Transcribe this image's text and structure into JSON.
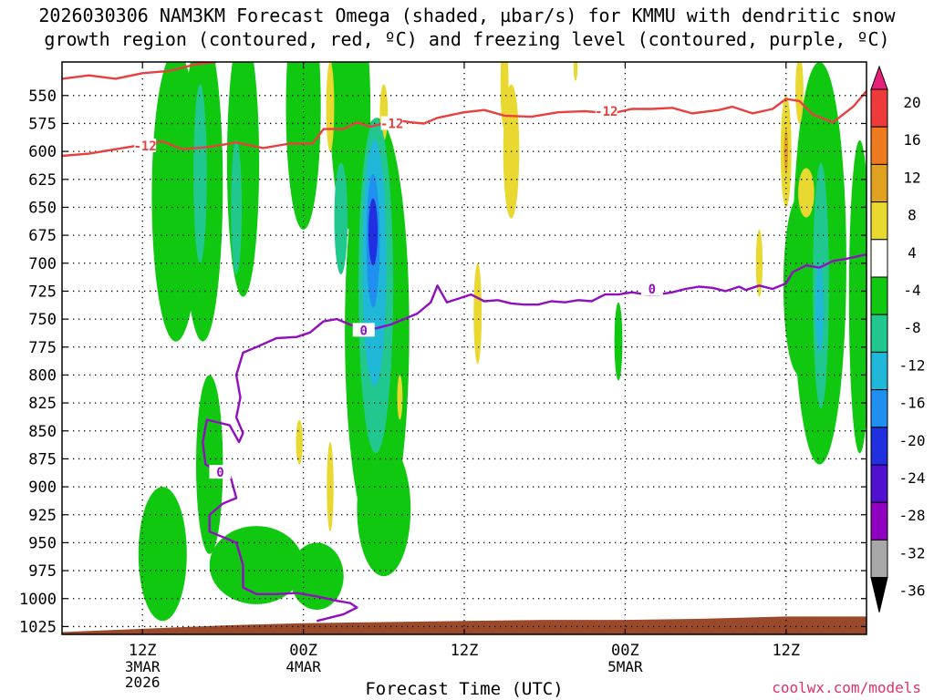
{
  "title": {
    "line1": "2026030306 NAM3KM Forecast Omega (shaded, µbar/s) for KMMU with dendritic snow",
    "line2": "growth region (contoured, red, ºC) and freezing level (contoured, purple, ºC)"
  },
  "credit": "coolwx.com/models",
  "colors": {
    "dgz_line": "#e84040",
    "freezing_line": "#9010c0",
    "ground": "#9a4a2a",
    "frame": "#000000",
    "grid": "#000000"
  },
  "chart_data": {
    "type": "heatmap",
    "xlabel": "Forecast Time (UTC)",
    "ylabel": "",
    "y_inverted": true,
    "yticks": [
      550,
      575,
      600,
      625,
      650,
      675,
      700,
      725,
      750,
      775,
      800,
      825,
      850,
      875,
      900,
      925,
      950,
      975,
      1000,
      1025
    ],
    "xticks": [
      {
        "hour": 12,
        "label": "12Z",
        "sub1": "3MAR",
        "sub2": "2026"
      },
      {
        "hour": 24,
        "label": "00Z",
        "sub1": "4MAR",
        "sub2": ""
      },
      {
        "hour": 36,
        "label": "12Z",
        "sub1": "",
        "sub2": ""
      },
      {
        "hour": 48,
        "label": "00Z",
        "sub1": "5MAR",
        "sub2": ""
      },
      {
        "hour": 60,
        "label": "12Z",
        "sub1": "",
        "sub2": ""
      }
    ],
    "x_range_hours": [
      6,
      66
    ],
    "y_range_hpa": [
      520,
      1032
    ],
    "colorbar": {
      "labels": [
        "20",
        "16",
        "12",
        "8",
        "4",
        "-4",
        "-8",
        "-12",
        "-16",
        "-20",
        "-24",
        "-28",
        "-32",
        "-36"
      ],
      "bins": [
        {
          "from": 20,
          "to": 24,
          "color": "#e8207a"
        },
        {
          "from": 16,
          "to": 20,
          "color": "#ee3a3a"
        },
        {
          "from": 12,
          "to": 16,
          "color": "#ee7a20"
        },
        {
          "from": 8,
          "to": 12,
          "color": "#e0a020"
        },
        {
          "from": 4,
          "to": 8,
          "color": "#e8d830"
        },
        {
          "from": -4,
          "to": 4,
          "color": "#ffffff"
        },
        {
          "from": -8,
          "to": -4,
          "color": "#10c810"
        },
        {
          "from": -12,
          "to": -8,
          "color": "#20c890"
        },
        {
          "from": -16,
          "to": -12,
          "color": "#20b8d8"
        },
        {
          "from": -20,
          "to": -16,
          "color": "#2090f0"
        },
        {
          "from": -24,
          "to": -20,
          "color": "#2030e0"
        },
        {
          "from": -28,
          "to": -24,
          "color": "#5010d0"
        },
        {
          "from": -32,
          "to": -28,
          "color": "#9000c0"
        },
        {
          "from": -36,
          "to": -32,
          "color": "#a8a8a8"
        },
        {
          "from": -40,
          "to": -36,
          "color": "#000000"
        }
      ]
    },
    "omega_regions": [
      {
        "level": -6,
        "center": [
          14.5,
          640
        ],
        "radius": [
          1.8,
          130
        ]
      },
      {
        "level": -6,
        "center": [
          16.5,
          630
        ],
        "radius": [
          1.5,
          140
        ]
      },
      {
        "level": -10,
        "center": [
          16.3,
          620
        ],
        "radius": [
          0.5,
          80
        ]
      },
      {
        "level": -6,
        "center": [
          19.5,
          610
        ],
        "radius": [
          1.2,
          120
        ]
      },
      {
        "level": -10,
        "center": [
          19.0,
          650
        ],
        "radius": [
          0.4,
          60
        ]
      },
      {
        "level": -6,
        "center": [
          13.5,
          960
        ],
        "radius": [
          1.8,
          60
        ]
      },
      {
        "level": -6,
        "center": [
          17.0,
          880
        ],
        "radius": [
          1.0,
          80
        ]
      },
      {
        "level": -6,
        "center": [
          20.5,
          970
        ],
        "radius": [
          3.5,
          35
        ]
      },
      {
        "level": -6,
        "center": [
          25.0,
          980
        ],
        "radius": [
          2.0,
          30
        ]
      },
      {
        "level": -6,
        "center": [
          24.0,
          560
        ],
        "radius": [
          1.3,
          110
        ]
      },
      {
        "level": -6,
        "center": [
          27.5,
          560
        ],
        "radius": [
          1.5,
          110
        ]
      },
      {
        "level": -6,
        "center": [
          29.5,
          760
        ],
        "radius": [
          2.4,
          190
        ]
      },
      {
        "level": -6,
        "center": [
          30.0,
          920
        ],
        "radius": [
          2.0,
          60
        ]
      },
      {
        "level": -10,
        "center": [
          29.4,
          720
        ],
        "radius": [
          1.3,
          150
        ]
      },
      {
        "level": -10,
        "center": [
          26.8,
          660
        ],
        "radius": [
          0.5,
          50
        ]
      },
      {
        "level": -14,
        "center": [
          29.3,
          700
        ],
        "radius": [
          0.9,
          110
        ]
      },
      {
        "level": -18,
        "center": [
          29.2,
          680
        ],
        "radius": [
          0.5,
          60
        ]
      },
      {
        "level": -22,
        "center": [
          29.2,
          672
        ],
        "radius": [
          0.35,
          30
        ]
      },
      {
        "level": -6,
        "center": [
          47.5,
          770
        ],
        "radius": [
          0.3,
          35
        ]
      },
      {
        "level": -6,
        "center": [
          62.5,
          700
        ],
        "radius": [
          2.0,
          180
        ]
      },
      {
        "level": -6,
        "center": [
          61.0,
          720
        ],
        "radius": [
          1.2,
          80
        ]
      },
      {
        "level": -6,
        "center": [
          65.5,
          730
        ],
        "radius": [
          0.8,
          140
        ]
      },
      {
        "level": -10,
        "center": [
          62.6,
          720
        ],
        "radius": [
          0.6,
          110
        ]
      },
      {
        "level": -14,
        "center": [
          62.5,
          740
        ],
        "radius": [
          0.3,
          40
        ]
      },
      {
        "level": 6,
        "center": [
          39.0,
          540
        ],
        "radius": [
          0.3,
          40
        ]
      },
      {
        "level": 6,
        "center": [
          39.5,
          600
        ],
        "radius": [
          0.6,
          60
        ]
      },
      {
        "level": 6,
        "center": [
          26.0,
          560
        ],
        "radius": [
          0.3,
          40
        ]
      },
      {
        "level": 6,
        "center": [
          26.0,
          900
        ],
        "radius": [
          0.25,
          40
        ]
      },
      {
        "level": 6,
        "center": [
          23.7,
          860
        ],
        "radius": [
          0.25,
          20
        ]
      },
      {
        "level": 6,
        "center": [
          30.0,
          565
        ],
        "radius": [
          0.3,
          25
        ]
      },
      {
        "level": 6,
        "center": [
          37.0,
          745
        ],
        "radius": [
          0.3,
          45
        ]
      },
      {
        "level": 6,
        "center": [
          31.2,
          820
        ],
        "radius": [
          0.2,
          20
        ]
      },
      {
        "level": 6,
        "center": [
          58.0,
          700
        ],
        "radius": [
          0.25,
          30
        ]
      },
      {
        "level": 6,
        "center": [
          60.0,
          600
        ],
        "radius": [
          0.4,
          50
        ]
      },
      {
        "level": 10,
        "center": [
          60.0,
          600
        ],
        "radius": [
          0.15,
          20
        ]
      },
      {
        "level": 6,
        "center": [
          61.5,
          637
        ],
        "radius": [
          0.6,
          22
        ]
      },
      {
        "level": 6,
        "center": [
          61.0,
          545
        ],
        "radius": [
          0.3,
          30
        ]
      },
      {
        "level": 6,
        "center": [
          44.3,
          525
        ],
        "radius": [
          0.15,
          12
        ]
      }
    ],
    "dgz_minus12_line": {
      "label": "-12",
      "points": [
        [
          6,
          604
        ],
        [
          8,
          602
        ],
        [
          10,
          598
        ],
        [
          12,
          594
        ],
        [
          13.5,
          591
        ],
        [
          15,
          598
        ],
        [
          17,
          596
        ],
        [
          19,
          592
        ],
        [
          21,
          597
        ],
        [
          23,
          593
        ],
        [
          24.7,
          593
        ],
        [
          25.5,
          580
        ],
        [
          27,
          580
        ],
        [
          28,
          574
        ],
        [
          29,
          578
        ],
        [
          31,
          572
        ],
        [
          32,
          574
        ],
        [
          33,
          575
        ],
        [
          34,
          570
        ],
        [
          36,
          565
        ],
        [
          37.5,
          563
        ],
        [
          39,
          568
        ],
        [
          41,
          569
        ],
        [
          43,
          565
        ],
        [
          45,
          564
        ],
        [
          47,
          566
        ],
        [
          48.5,
          562
        ],
        [
          50,
          562
        ],
        [
          51.5,
          561
        ],
        [
          53,
          566
        ],
        [
          55,
          563
        ],
        [
          56,
          560
        ],
        [
          57.5,
          566
        ],
        [
          59,
          562
        ],
        [
          60,
          553
        ],
        [
          61,
          555
        ],
        [
          62,
          567
        ],
        [
          63.5,
          574
        ],
        [
          65,
          560
        ],
        [
          66,
          546
        ]
      ],
      "points_top": [
        [
          6,
          535
        ],
        [
          8,
          532
        ],
        [
          10,
          535
        ],
        [
          12,
          530
        ],
        [
          14,
          528
        ],
        [
          16,
          522
        ],
        [
          17.5,
          520
        ]
      ],
      "label_positions": [
        [
          12.2,
          595
        ],
        [
          30.6,
          575
        ],
        [
          46.6,
          564
        ]
      ]
    },
    "freezing_level_line": {
      "label": "0",
      "points": [
        [
          66,
          692
        ],
        [
          64.5,
          696
        ],
        [
          63.5,
          698
        ],
        [
          62.5,
          704
        ],
        [
          61.5,
          702
        ],
        [
          60.5,
          708
        ],
        [
          60,
          718
        ],
        [
          59,
          723
        ],
        [
          58,
          720
        ],
        [
          57,
          724
        ],
        [
          56.5,
          721
        ],
        [
          55.5,
          725
        ],
        [
          54.5,
          722
        ],
        [
          53.5,
          721
        ],
        [
          52.5,
          723
        ],
        [
          51.5,
          726
        ],
        [
          50.5,
          728
        ],
        [
          49.5,
          728
        ],
        [
          48.5,
          726
        ],
        [
          47.5,
          728
        ],
        [
          46.5,
          728
        ],
        [
          45.5,
          734
        ],
        [
          44.5,
          733
        ],
        [
          43.5,
          735
        ],
        [
          42.5,
          734
        ],
        [
          41.5,
          737
        ],
        [
          40.5,
          737
        ],
        [
          39.5,
          736
        ],
        [
          38.5,
          733
        ],
        [
          37.5,
          734
        ],
        [
          36.5,
          728
        ],
        [
          35.5,
          732
        ],
        [
          34.7,
          735
        ],
        [
          34.0,
          720
        ],
        [
          33.5,
          735
        ],
        [
          32.5,
          745
        ],
        [
          31.5,
          750
        ],
        [
          30.5,
          755
        ],
        [
          29.5,
          758
        ],
        [
          28.5,
          760
        ],
        [
          27.5,
          755
        ],
        [
          26.5,
          750
        ],
        [
          25.5,
          752
        ],
        [
          24.5,
          762
        ],
        [
          23.5,
          766
        ],
        [
          22,
          767
        ],
        [
          20.5,
          775
        ],
        [
          19.5,
          780
        ],
        [
          19.0,
          800
        ],
        [
          19.3,
          820
        ],
        [
          19.0,
          838
        ],
        [
          19.5,
          852
        ],
        [
          19.2,
          860
        ],
        [
          18.5,
          845
        ],
        [
          17.5,
          842
        ],
        [
          16.8,
          840
        ],
        [
          16.5,
          860
        ],
        [
          16.7,
          880
        ],
        [
          17.5,
          885
        ],
        [
          18.5,
          888
        ],
        [
          19.0,
          910
        ],
        [
          18.0,
          915
        ],
        [
          17.0,
          925
        ],
        [
          17.0,
          940
        ],
        [
          18.0,
          945
        ],
        [
          19.0,
          950
        ],
        [
          19.5,
          970
        ],
        [
          19.5,
          990
        ],
        [
          20.5,
          996
        ],
        [
          22,
          996
        ],
        [
          23.5,
          995
        ],
        [
          25,
          998
        ],
        [
          26.5,
          1002
        ],
        [
          27.5,
          1004
        ],
        [
          28.0,
          1008
        ],
        [
          27.0,
          1014
        ],
        [
          25.0,
          1020
        ]
      ],
      "label_positions": [
        [
          28.5,
          760
        ],
        [
          17.8,
          887
        ],
        [
          50.0,
          723
        ]
      ]
    },
    "ground_surface_hpa": [
      [
        6,
        1030
      ],
      [
        12,
        1027
      ],
      [
        18,
        1024
      ],
      [
        24,
        1022
      ],
      [
        30,
        1021
      ],
      [
        36,
        1020
      ],
      [
        42,
        1019
      ],
      [
        48,
        1019
      ],
      [
        54,
        1018
      ],
      [
        60,
        1016
      ],
      [
        66,
        1016
      ]
    ]
  }
}
